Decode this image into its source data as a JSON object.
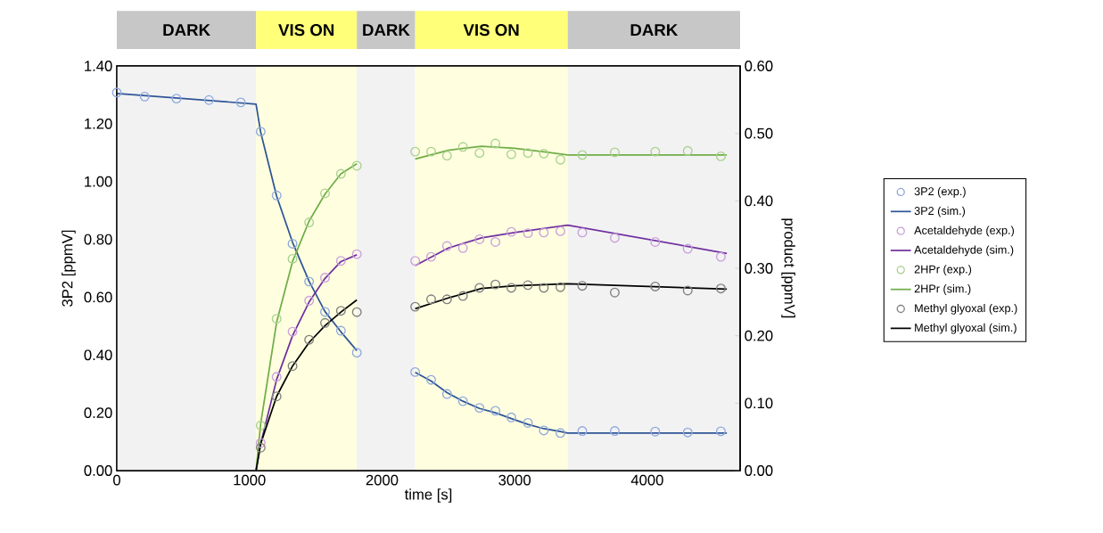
{
  "chart_data": {
    "type": "line",
    "xlabel": "time [s]",
    "ylabel": "3P2 [ppmV]",
    "y2label": "product [ppmV]",
    "xlim": [
      0,
      4700
    ],
    "xticks": [
      0,
      1000,
      2000,
      3000,
      4000
    ],
    "ylim": [
      0,
      1.4
    ],
    "yticks": [
      {
        "value": 0,
        "label": "0.00"
      },
      {
        "value": 0.2,
        "label": "0.20"
      },
      {
        "value": 0.4,
        "label": "0.40"
      },
      {
        "value": 0.6,
        "label": "0.60"
      },
      {
        "value": 0.8,
        "label": "0.80"
      },
      {
        "value": 1.0,
        "label": "1.00"
      },
      {
        "value": 1.2,
        "label": "1.20"
      },
      {
        "value": 1.4,
        "label": "1.40"
      }
    ],
    "y2lim": [
      0,
      0.6
    ],
    "y2ticks": [
      {
        "value": 0,
        "label": "0.00"
      },
      {
        "value": 0.1,
        "label": "0.10"
      },
      {
        "value": 0.2,
        "label": "0.20"
      },
      {
        "value": 0.3,
        "label": "0.30"
      },
      {
        "value": 0.4,
        "label": "0.40"
      },
      {
        "value": 0.5,
        "label": "0.50"
      },
      {
        "value": 0.6,
        "label": "0.60"
      }
    ],
    "legend": "right",
    "grid": false,
    "bands": [
      {
        "axis": "x",
        "from": 0,
        "to": 1050,
        "label": "DARK",
        "color": "#f2f2f2"
      },
      {
        "axis": "x",
        "from": 1050,
        "to": 1810,
        "label": "VIS ON",
        "color": "#ffffe0"
      },
      {
        "axis": "x",
        "from": 1810,
        "to": 2250,
        "label": "DARK",
        "color": "#f2f2f2"
      },
      {
        "axis": "x",
        "from": 2250,
        "to": 3400,
        "label": "VIS ON",
        "color": "#ffffe0"
      },
      {
        "axis": "x",
        "from": 3400,
        "to": 4700,
        "label": "DARK",
        "color": "#f2f2f2"
      }
    ],
    "series": [
      {
        "name": "3P2 (exp.)",
        "type": "scatter",
        "marker": "circle",
        "color": "#8faadc",
        "x": [
          0,
          210,
          450,
          695,
          935,
          1085,
          1205,
          1325,
          1450,
          1570,
          1690,
          1810,
          2250,
          2370,
          2490,
          2610,
          2735,
          2855,
          2975,
          3100,
          3220,
          3345,
          3510,
          3755,
          4060,
          4305,
          4555
        ],
        "values": [
          1.308,
          1.294,
          1.287,
          1.282,
          1.274,
          1.173,
          0.952,
          0.785,
          0.654,
          0.549,
          0.484,
          0.408,
          0.341,
          0.314,
          0.265,
          0.24,
          0.217,
          0.207,
          0.184,
          0.165,
          0.139,
          0.13,
          0.137,
          0.137,
          0.135,
          0.132,
          0.136
        ]
      },
      {
        "name": "3P2 (sim.)",
        "color": "#2f5597",
        "x": [
          0,
          1050,
          1085,
          1205,
          1325,
          1450,
          1570,
          1690,
          1810,
          2030,
          2250,
          2370,
          2490,
          2610,
          2735,
          2855,
          2975,
          3100,
          3220,
          3345,
          3400,
          4600
        ],
        "values": [
          1.305,
          1.268,
          1.17,
          0.95,
          0.79,
          0.655,
          0.55,
          0.48,
          0.415,
          null,
          0.34,
          0.31,
          0.27,
          0.24,
          0.215,
          0.2,
          0.18,
          0.16,
          0.145,
          0.135,
          0.13,
          0.13
        ]
      },
      {
        "name": "Acetaldehyde (exp.)",
        "type": "scatter",
        "marker": "circle",
        "axis": "y2",
        "color": "#c9a0dc",
        "x": [
          1085,
          1205,
          1325,
          1450,
          1570,
          1690,
          1810,
          2250,
          2370,
          2490,
          2610,
          2735,
          2855,
          2975,
          3100,
          3220,
          3345,
          3510,
          3755,
          4060,
          4305,
          4555
        ],
        "values": [
          0.041,
          0.139,
          0.206,
          0.252,
          0.286,
          0.311,
          0.321,
          0.311,
          0.317,
          0.333,
          0.33,
          0.343,
          0.339,
          0.354,
          0.352,
          0.353,
          0.355,
          0.353,
          0.345,
          0.339,
          0.329,
          0.317
        ]
      },
      {
        "name": "Acetaldehyde (sim.)",
        "axis": "y2",
        "color": "#7030a0",
        "x": [
          1050,
          1085,
          1205,
          1325,
          1450,
          1570,
          1690,
          1810,
          2030,
          2250,
          2500,
          2750,
          3000,
          3400,
          4600
        ],
        "values": [
          0,
          0.04,
          0.135,
          0.2,
          0.25,
          0.285,
          0.31,
          0.32,
          null,
          0.304,
          0.33,
          0.345,
          0.353,
          0.364,
          0.322
        ]
      },
      {
        "name": "2HPr (exp.)",
        "type": "scatter",
        "marker": "circle",
        "axis": "y2",
        "color": "#a9d18e",
        "x": [
          1085,
          1205,
          1325,
          1450,
          1570,
          1690,
          1810,
          2250,
          2370,
          2490,
          2610,
          2735,
          2855,
          2975,
          3100,
          3220,
          3345,
          3510,
          3755,
          4060,
          4305,
          4555
        ],
        "values": [
          0.067,
          0.225,
          0.314,
          0.368,
          0.411,
          0.44,
          0.452,
          0.473,
          0.473,
          0.467,
          0.48,
          0.471,
          0.485,
          0.469,
          0.471,
          0.47,
          0.461,
          0.468,
          0.472,
          0.473,
          0.474,
          0.466
        ]
      },
      {
        "name": "2HPr (sim.)",
        "axis": "y2",
        "color": "#70ad47",
        "x": [
          1050,
          1085,
          1205,
          1325,
          1450,
          1570,
          1690,
          1810,
          2030,
          2250,
          2500,
          2750,
          3000,
          3250,
          3400,
          4600
        ],
        "values": [
          0,
          0.07,
          0.22,
          0.31,
          0.37,
          0.41,
          0.44,
          0.455,
          null,
          0.462,
          0.475,
          0.481,
          0.478,
          0.472,
          0.468,
          0.468
        ]
      },
      {
        "name": "Methyl glyoxal (exp.)",
        "type": "scatter",
        "marker": "circle",
        "axis": "y2",
        "color": "#7f7f7f",
        "x": [
          1085,
          1205,
          1325,
          1450,
          1570,
          1690,
          1810,
          2250,
          2370,
          2490,
          2610,
          2735,
          2855,
          2975,
          3100,
          3220,
          3345,
          3510,
          3755,
          4060,
          4305,
          4555
        ],
        "values": [
          0.034,
          0.11,
          0.155,
          0.194,
          0.219,
          0.237,
          0.235,
          0.243,
          0.254,
          0.254,
          0.259,
          0.271,
          0.276,
          0.271,
          0.275,
          0.271,
          0.272,
          0.274,
          0.264,
          0.273,
          0.267,
          0.27
        ]
      },
      {
        "name": "Methyl glyoxal (sim.)",
        "axis": "y2",
        "color": "#000000",
        "x": [
          1050,
          1085,
          1205,
          1325,
          1450,
          1570,
          1690,
          1810,
          2030,
          2250,
          2500,
          2750,
          3000,
          3400,
          4600
        ],
        "values": [
          0,
          0.04,
          0.11,
          0.155,
          0.19,
          0.215,
          0.235,
          0.253,
          null,
          0.24,
          0.256,
          0.27,
          0.274,
          0.277,
          0.269
        ]
      }
    ]
  }
}
